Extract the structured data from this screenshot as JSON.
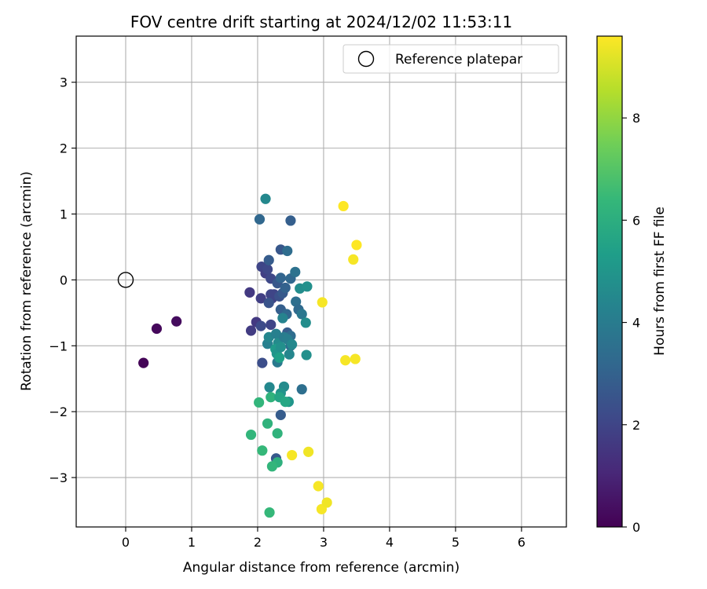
{
  "chart_data": {
    "type": "scatter",
    "title": "FOV centre drift starting at 2024/12/02 11:53:11",
    "xlabel": "Angular distance from reference (arcmin)",
    "ylabel": "Rotation from reference (arcmin)",
    "xlim": [
      -0.75,
      6.68
    ],
    "ylim": [
      -3.75,
      3.7
    ],
    "xticks": [
      0,
      1,
      2,
      3,
      4,
      5,
      6
    ],
    "yticks": [
      -3,
      -2,
      -1,
      0,
      1,
      2,
      3
    ],
    "grid": true,
    "legend": {
      "placement": "top-right",
      "entries": [
        "Reference platepar"
      ]
    },
    "reference_point": {
      "x": 0,
      "y": 0,
      "name": "Reference platepar"
    },
    "colorbar": {
      "label": "Hours from first FF file",
      "range": [
        0,
        9.6
      ],
      "ticks": [
        0,
        2,
        4,
        6,
        8
      ],
      "colormap": "viridis",
      "colors": [
        "#440154",
        "#482878",
        "#3e4989",
        "#31688e",
        "#26828e",
        "#1f9e89",
        "#35b779",
        "#6ece58",
        "#b5de2b",
        "#fde725"
      ]
    },
    "points": [
      {
        "x": 0.27,
        "y": -1.26,
        "c": 0.1
      },
      {
        "x": 0.47,
        "y": -0.74,
        "c": 0.2
      },
      {
        "x": 0.77,
        "y": -0.63,
        "c": 0.3
      },
      {
        "x": 1.88,
        "y": -0.19,
        "c": 1.6
      },
      {
        "x": 1.9,
        "y": -0.77,
        "c": 1.7
      },
      {
        "x": 1.98,
        "y": -0.64,
        "c": 1.6
      },
      {
        "x": 2.05,
        "y": -0.28,
        "c": 1.8
      },
      {
        "x": 2.06,
        "y": 0.2,
        "c": 2.0
      },
      {
        "x": 2.07,
        "y": -1.26,
        "c": 2.3
      },
      {
        "x": 2.12,
        "y": 0.1,
        "c": 1.8
      },
      {
        "x": 2.15,
        "y": 0.16,
        "c": 2.1
      },
      {
        "x": 2.2,
        "y": -0.22,
        "c": 2.0
      },
      {
        "x": 2.22,
        "y": -0.28,
        "c": 1.9
      },
      {
        "x": 2.25,
        "y": -0.22,
        "c": 2.0
      },
      {
        "x": 2.2,
        "y": 0.02,
        "c": 2.1
      },
      {
        "x": 2.2,
        "y": -0.68,
        "c": 2.0
      },
      {
        "x": 2.05,
        "y": -0.7,
        "c": 2.2
      },
      {
        "x": 2.17,
        "y": -0.35,
        "c": 2.5
      },
      {
        "x": 2.17,
        "y": 0.3,
        "c": 2.8
      },
      {
        "x": 2.3,
        "y": -0.05,
        "c": 2.6
      },
      {
        "x": 2.33,
        "y": -0.25,
        "c": 2.4
      },
      {
        "x": 2.35,
        "y": 0.03,
        "c": 3.1
      },
      {
        "x": 2.38,
        "y": -0.2,
        "c": 2.7
      },
      {
        "x": 2.35,
        "y": -0.45,
        "c": 2.9
      },
      {
        "x": 2.35,
        "y": 0.46,
        "c": 2.6
      },
      {
        "x": 2.35,
        "y": -2.05,
        "c": 2.8
      },
      {
        "x": 2.28,
        "y": -2.71,
        "c": 2.7
      },
      {
        "x": 2.42,
        "y": -0.12,
        "c": 3.0
      },
      {
        "x": 2.44,
        "y": -0.52,
        "c": 3.2
      },
      {
        "x": 2.45,
        "y": -0.8,
        "c": 2.8
      },
      {
        "x": 2.45,
        "y": 0.44,
        "c": 3.4
      },
      {
        "x": 2.5,
        "y": 0.9,
        "c": 2.9
      },
      {
        "x": 2.5,
        "y": 0.02,
        "c": 3.2
      },
      {
        "x": 2.5,
        "y": -0.85,
        "c": 3.4
      },
      {
        "x": 2.5,
        "y": -1.0,
        "c": 3.3
      },
      {
        "x": 2.57,
        "y": 0.12,
        "c": 3.6
      },
      {
        "x": 2.58,
        "y": -0.33,
        "c": 3.5
      },
      {
        "x": 2.62,
        "y": -0.45,
        "c": 3.3
      },
      {
        "x": 2.67,
        "y": -0.52,
        "c": 3.8
      },
      {
        "x": 2.67,
        "y": -1.66,
        "c": 3.5
      },
      {
        "x": 2.03,
        "y": 0.92,
        "c": 3.2
      },
      {
        "x": 2.12,
        "y": 1.23,
        "c": 4.5
      },
      {
        "x": 2.15,
        "y": -0.97,
        "c": 4.2
      },
      {
        "x": 2.17,
        "y": -0.87,
        "c": 4.4
      },
      {
        "x": 2.28,
        "y": -0.82,
        "c": 4.2
      },
      {
        "x": 2.3,
        "y": -1.25,
        "c": 3.9
      },
      {
        "x": 2.31,
        "y": -0.96,
        "c": 4.6
      },
      {
        "x": 2.38,
        "y": -0.58,
        "c": 4.3
      },
      {
        "x": 2.4,
        "y": -0.87,
        "c": 4.0
      },
      {
        "x": 2.45,
        "y": -0.9,
        "c": 4.1
      },
      {
        "x": 2.48,
        "y": -1.13,
        "c": 4.4
      },
      {
        "x": 2.52,
        "y": -0.98,
        "c": 4.5
      },
      {
        "x": 2.64,
        "y": -0.13,
        "c": 4.7
      },
      {
        "x": 2.75,
        "y": -0.1,
        "c": 4.8
      },
      {
        "x": 2.73,
        "y": -0.65,
        "c": 4.7
      },
      {
        "x": 2.74,
        "y": -1.14,
        "c": 4.8
      },
      {
        "x": 2.18,
        "y": -1.63,
        "c": 4.5
      },
      {
        "x": 2.4,
        "y": -1.62,
        "c": 4.6
      },
      {
        "x": 2.35,
        "y": -1.72,
        "c": 4.9
      },
      {
        "x": 2.47,
        "y": -1.85,
        "c": 5.0
      },
      {
        "x": 2.27,
        "y": -1.05,
        "c": 5.2
      },
      {
        "x": 2.29,
        "y": -1.12,
        "c": 5.0
      },
      {
        "x": 2.33,
        "y": -1.18,
        "c": 5.4
      },
      {
        "x": 2.35,
        "y": -1.02,
        "c": 4.8
      },
      {
        "x": 2.2,
        "y": -1.78,
        "c": 6.2
      },
      {
        "x": 2.33,
        "y": -1.78,
        "c": 5.6
      },
      {
        "x": 2.42,
        "y": -1.85,
        "c": 5.7
      },
      {
        "x": 2.02,
        "y": -1.86,
        "c": 6.3
      },
      {
        "x": 2.15,
        "y": -2.18,
        "c": 6.2
      },
      {
        "x": 1.9,
        "y": -2.35,
        "c": 6.3
      },
      {
        "x": 2.3,
        "y": -2.33,
        "c": 6.2
      },
      {
        "x": 2.07,
        "y": -2.59,
        "c": 6.4
      },
      {
        "x": 2.3,
        "y": -2.77,
        "c": 6.1
      },
      {
        "x": 2.22,
        "y": -2.83,
        "c": 6.3
      },
      {
        "x": 2.18,
        "y": -3.53,
        "c": 6.4
      },
      {
        "x": 2.52,
        "y": -2.66,
        "c": 9.5
      },
      {
        "x": 2.77,
        "y": -2.61,
        "c": 9.4
      },
      {
        "x": 2.92,
        "y": -3.13,
        "c": 9.5
      },
      {
        "x": 2.97,
        "y": -3.48,
        "c": 9.5
      },
      {
        "x": 3.05,
        "y": -3.38,
        "c": 9.4
      },
      {
        "x": 2.98,
        "y": -0.34,
        "c": 9.5
      },
      {
        "x": 3.3,
        "y": 1.12,
        "c": 9.6
      },
      {
        "x": 3.45,
        "y": 0.31,
        "c": 9.5
      },
      {
        "x": 3.5,
        "y": 0.53,
        "c": 9.6
      },
      {
        "x": 3.33,
        "y": -1.22,
        "c": 9.5
      },
      {
        "x": 3.48,
        "y": -1.2,
        "c": 9.5
      }
    ]
  }
}
